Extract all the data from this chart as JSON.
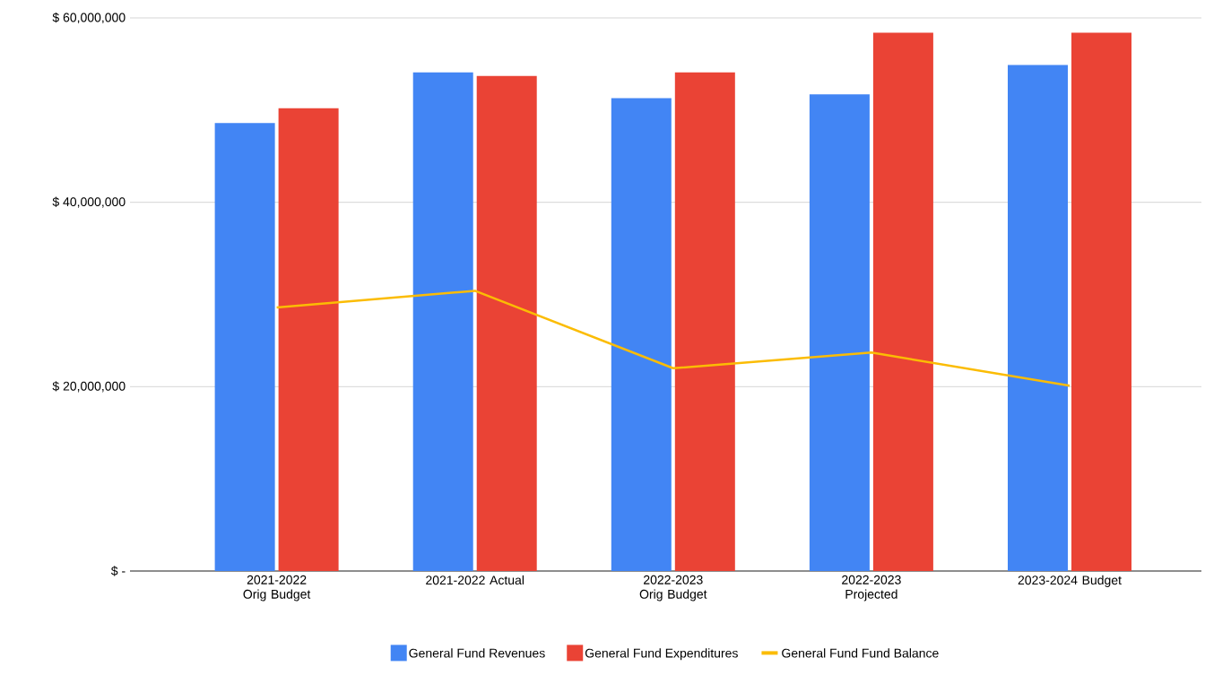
{
  "chart_data": {
    "type": "bar",
    "categories": [
      "2021-2022 Orig Budget",
      "2021-2022 Actual",
      "2022-2023 Orig Budget",
      "2022-2023 Projected",
      "2023-2024 Budget"
    ],
    "series": [
      {
        "name": "General Fund Revenues",
        "color": "#4285f4",
        "values": [
          48600000,
          54100000,
          51300000,
          51700000,
          54900000
        ]
      },
      {
        "name": "General Fund Expenditures",
        "color": "#ea4335",
        "values": [
          50200000,
          53700000,
          54100000,
          58400000,
          58400000
        ]
      },
      {
        "name": "General Fund Fund Balance",
        "type": "line",
        "color": "#fbbc04",
        "values": [
          28600000,
          30400000,
          22000000,
          23700000,
          20100000
        ]
      }
    ],
    "ylim": [
      0,
      60000000
    ],
    "yticks": [
      {
        "value": 0,
        "label": "$ -"
      },
      {
        "value": 20000000,
        "label": "$ 20,000,000"
      },
      {
        "value": 40000000,
        "label": "$ 40,000,000"
      },
      {
        "value": 60000000,
        "label": "$ 60,000,000"
      }
    ],
    "grid": "y",
    "legend": "bottom",
    "marker": "none"
  }
}
